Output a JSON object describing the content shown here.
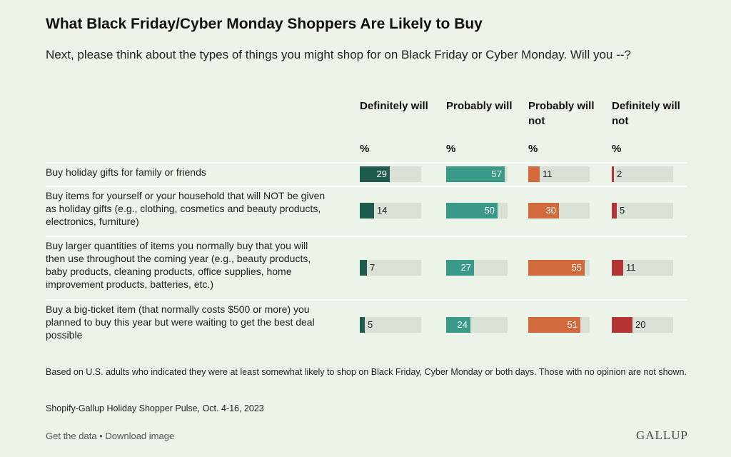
{
  "title": "What Black Friday/Cyber Monday Shoppers Are Likely to Buy",
  "subtitle": "Next, please think about the types of things you might shop for on Black Friday or Cyber Monday. Will you --?",
  "column_headers": [
    {
      "label": "Definitely will",
      "unit": "%",
      "color": "#1f5c4f"
    },
    {
      "label": "Probably will",
      "unit": "%",
      "color": "#3a9a8a"
    },
    {
      "label": "Probably will not",
      "unit": "%",
      "color": "#d26a3c"
    },
    {
      "label": "Definitely will not",
      "unit": "%",
      "color": "#b53434"
    }
  ],
  "chart_data": {
    "type": "bar",
    "categories": [
      "Buy holiday gifts for family or friends",
      "Buy items for yourself or your household that will NOT be given as holiday gifts (e.g., clothing, cosmetics and beauty products, electronics, furniture)",
      "Buy larger quantities of items you normally buy that you will then use throughout the coming year (e.g., beauty products, baby products, cleaning products, office supplies, home improvement products, batteries, etc.)",
      "Buy a big-ticket item (that normally costs $500 or more) you planned to buy this year but were waiting to get the best deal possible"
    ],
    "series": [
      {
        "name": "Definitely will",
        "values": [
          29,
          14,
          7,
          5
        ]
      },
      {
        "name": "Probably will",
        "values": [
          57,
          50,
          27,
          24
        ]
      },
      {
        "name": "Probably will not",
        "values": [
          11,
          30,
          55,
          51
        ]
      },
      {
        "name": "Definitely will not",
        "values": [
          2,
          5,
          11,
          20
        ]
      }
    ],
    "ylim": [
      0,
      60
    ]
  },
  "footnote": "Based on U.S. adults who indicated they were at least somewhat likely to shop on Black Friday, Cyber Monday or both days. Those with no opinion are not shown.",
  "source": "Shopify-Gallup Holiday Shopper Pulse, Oct. 4-16, 2023",
  "links": {
    "get_data": "Get the data",
    "separator": " • ",
    "download": "Download image"
  },
  "logo": "GALLUP"
}
